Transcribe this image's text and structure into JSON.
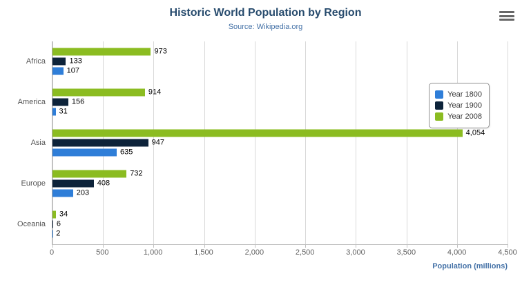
{
  "chart_data": {
    "type": "bar",
    "title": "Historic World Population by Region",
    "subtitle": "Source: Wikipedia.org",
    "categories": [
      "Africa",
      "America",
      "Asia",
      "Europe",
      "Oceania"
    ],
    "series": [
      {
        "name": "Year 1800",
        "color": "#2f7ed8",
        "values": [
          107,
          31,
          635,
          203,
          2
        ]
      },
      {
        "name": "Year 1900",
        "color": "#0d233a",
        "values": [
          133,
          156,
          947,
          408,
          6
        ]
      },
      {
        "name": "Year 2008",
        "color": "#8bbc21",
        "values": [
          973,
          914,
          4054,
          732,
          34
        ]
      }
    ],
    "bar_display_order_top_to_bottom": [
      "Year 2008",
      "Year 1900",
      "Year 1800"
    ],
    "x_ticks": [
      0,
      500,
      1000,
      1500,
      2000,
      2500,
      3000,
      3500,
      4000,
      4500
    ],
    "xlim": [
      0,
      4500
    ],
    "xlabel": "Population (millions)",
    "grid": true,
    "legend_position": "right"
  },
  "colors": {
    "title": "#274b6d",
    "subtitle": "#4572a7",
    "axis_title": "#4572a7",
    "tick_label": "#606060",
    "gridline": "#d8d8d8"
  },
  "export_menu": {
    "icon": "hamburger-icon"
  }
}
